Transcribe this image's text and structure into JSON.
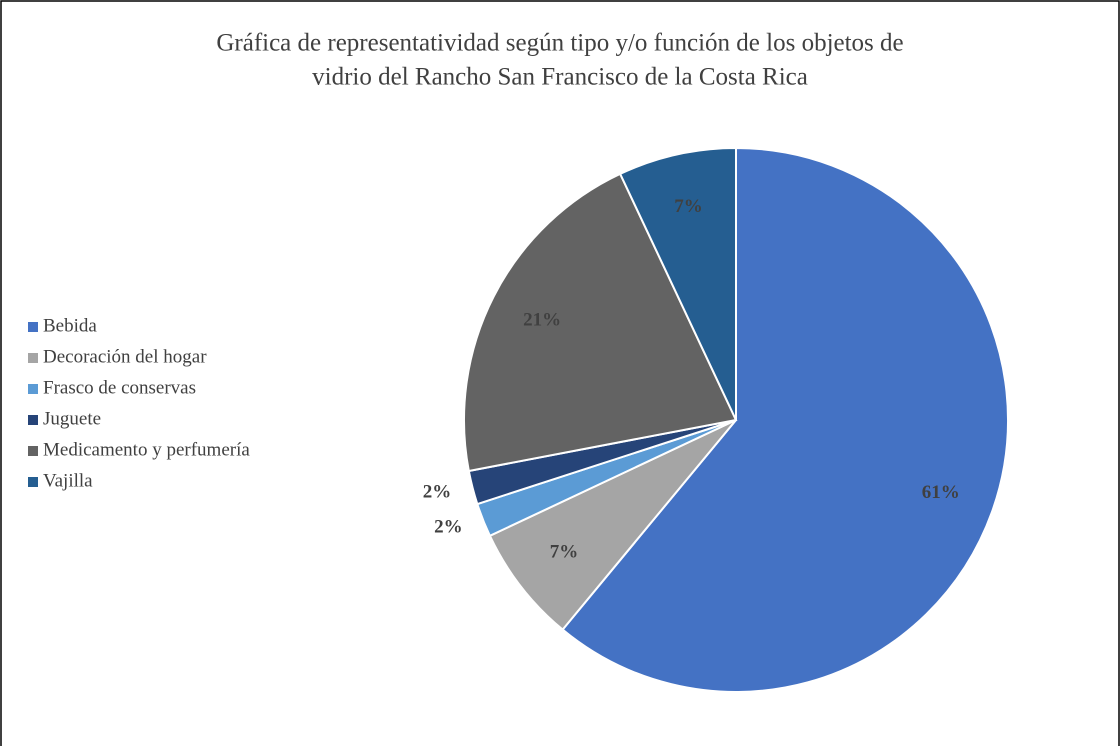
{
  "chart_data": {
    "type": "pie",
    "title": [
      "Gráfica de representatividad según tipo y/o función de los objetos de",
      "vidrio del Rancho San Francisco de la Costa Rica"
    ],
    "categories": [
      "Bebida",
      "Decoración del hogar",
      "Frasco de conservas",
      "Juguete",
      "Medicamento y perfumería",
      "Vajilla"
    ],
    "values": [
      61,
      7,
      2,
      2,
      21,
      7
    ],
    "value_labels": [
      "61%",
      "7%",
      "2%",
      "2%",
      "21%",
      "7%"
    ],
    "colors": [
      "#4472c4",
      "#a5a5a5",
      "#5b9bd5",
      "#264478",
      "#636363",
      "#255e91"
    ],
    "legend": "left"
  }
}
